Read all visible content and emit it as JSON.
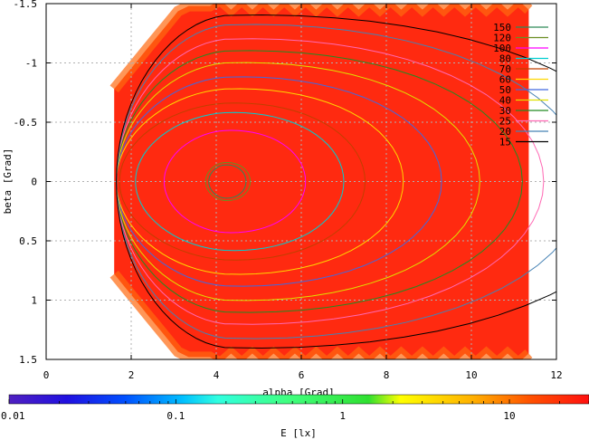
{
  "chart_data": {
    "type": "heatmap",
    "subtype": "contour",
    "title": "",
    "xlabel": "alpha [Grad]",
    "ylabel": "beta [Grad]",
    "xlim": [
      0,
      12
    ],
    "ylim": [
      1.5,
      -1.5
    ],
    "y_axis_inverted": true,
    "x_ticks": [
      "0",
      "2",
      "4",
      "6",
      "8",
      "10",
      "12"
    ],
    "x_tick_values": [
      0,
      2,
      4,
      6,
      8,
      10,
      12
    ],
    "y_ticks": [
      "-1.5",
      "-1",
      "-0.5",
      "0",
      "0.5",
      "1",
      "1.5"
    ],
    "y_tick_values": [
      -1.5,
      -1,
      -0.5,
      0,
      0.5,
      1,
      1.5
    ],
    "grid": true,
    "legend_position": "top-right",
    "field_peak": {
      "alpha": 4.2,
      "beta": 0.0
    },
    "field_extent_alpha": [
      1.6,
      11.4
    ],
    "series": [
      {
        "name": "150",
        "level": 150,
        "color": "#2e8b57",
        "ra": 0.5,
        "rb": 0.14
      },
      {
        "name": "120",
        "level": 120,
        "color": "#6b8e23",
        "ra": 0.6,
        "rb": 0.16
      },
      {
        "name": "100",
        "level": 100,
        "color": "#ff00ff",
        "ra": 1.9,
        "rb": 0.43
      },
      {
        "name": "80",
        "level": 80,
        "color": "#00ced1",
        "ra": 2.8,
        "rb": 0.58
      },
      {
        "name": "70",
        "level": 70,
        "color": "#c04000",
        "ra": 3.3,
        "rb": 0.66
      },
      {
        "name": "60",
        "level": 60,
        "color": "#ffd700",
        "ra": 4.2,
        "rb": 0.78
      },
      {
        "name": "50",
        "level": 50,
        "color": "#4169e1",
        "ra": 5.1,
        "rb": 0.88
      },
      {
        "name": "40",
        "level": 40,
        "color": "#e0e000",
        "ra": 6.0,
        "rb": 1.0
      },
      {
        "name": "30",
        "level": 30,
        "color": "#228b22",
        "ra": 7.0,
        "rb": 1.1
      },
      {
        "name": "25",
        "level": 25,
        "color": "#ff69b4",
        "ra": 7.5,
        "rb": 1.2
      },
      {
        "name": "20",
        "level": 20,
        "color": "#4682b4",
        "ra": 8.5,
        "rb": 1.32
      },
      {
        "name": "15",
        "level": 15,
        "color": "#000000",
        "ra": 10.0,
        "rb": 1.4
      }
    ],
    "colorbar": {
      "label": "E [lx]",
      "scale": "log",
      "range": [
        0.01,
        30
      ],
      "ticks": [
        "0.01",
        "0.1",
        "1",
        "10"
      ],
      "tick_values": [
        0.01,
        0.1,
        1,
        10
      ]
    }
  },
  "colors": {
    "field": "#ff2a10",
    "field_edge": "#ff6a10",
    "grid": "#b0b0b0"
  }
}
